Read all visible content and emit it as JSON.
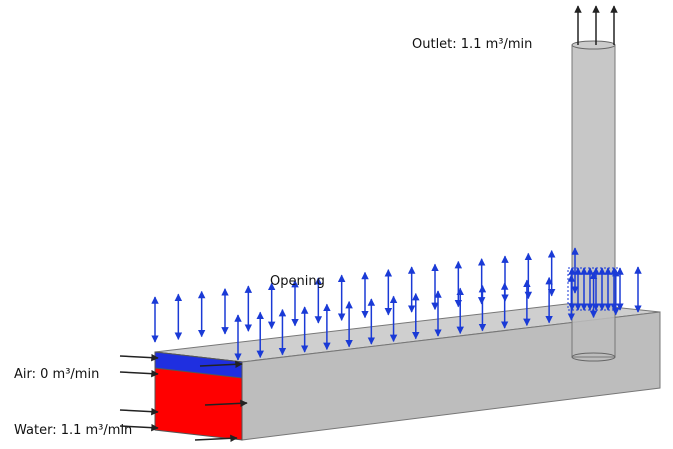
{
  "labels": {
    "outlet": "Outlet: 1.1 m³/min",
    "opening": "Opening",
    "air": "Air: 0 m³/min",
    "water": "Water: 1.1 m³/min"
  }
}
